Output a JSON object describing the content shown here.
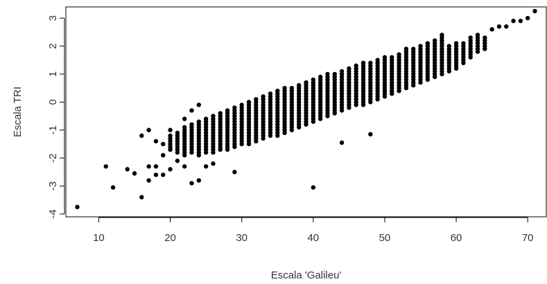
{
  "chart_data": {
    "type": "scatter",
    "title": "",
    "xlabel": "Escala 'Galileu'",
    "ylabel": "Escala TRI",
    "xlim": [
      5.4,
      72.6
    ],
    "ylim": [
      -4.1,
      3.4
    ],
    "xticks": [
      10,
      20,
      30,
      40,
      50,
      60,
      70
    ],
    "yticks": [
      -4,
      -3,
      -2,
      -1,
      0,
      1,
      2,
      3
    ],
    "grid": false,
    "legend": "none",
    "marker_color": "#000000",
    "points": {
      "x": [
        7,
        11,
        12,
        14,
        15,
        16,
        16,
        17,
        17,
        17,
        18,
        18,
        18,
        19,
        19,
        19,
        20,
        20,
        20,
        21,
        21,
        22,
        22,
        23,
        23,
        24,
        24,
        25,
        26,
        29,
        40,
        44,
        48
      ],
      "y": [
        -3.75,
        -2.3,
        -3.05,
        -2.4,
        -2.55,
        -1.2,
        -3.4,
        -1.0,
        -2.3,
        -2.8,
        -1.4,
        -2.3,
        -2.6,
        -1.5,
        -1.9,
        -2.6,
        -1.0,
        -1.7,
        -2.4,
        -2.1,
        -1.4,
        -2.3,
        -0.6,
        -2.9,
        -0.3,
        -2.8,
        -0.1,
        -2.3,
        -2.2,
        -2.5,
        -3.05,
        -1.45,
        -1.15
      ]
    },
    "column_bands": [
      {
        "x": 20,
        "ymin": -1.7,
        "ymax": -1.2
      },
      {
        "x": 21,
        "ymin": -1.8,
        "ymax": -1.1
      },
      {
        "x": 22,
        "ymin": -1.9,
        "ymax": -0.9
      },
      {
        "x": 23,
        "ymin": -1.8,
        "ymax": -0.8
      },
      {
        "x": 24,
        "ymin": -1.9,
        "ymax": -0.7
      },
      {
        "x": 25,
        "ymin": -1.8,
        "ymax": -0.6
      },
      {
        "x": 26,
        "ymin": -1.8,
        "ymax": -0.5
      },
      {
        "x": 27,
        "ymin": -1.7,
        "ymax": -0.4
      },
      {
        "x": 28,
        "ymin": -1.7,
        "ymax": -0.3
      },
      {
        "x": 29,
        "ymin": -1.6,
        "ymax": -0.2
      },
      {
        "x": 30,
        "ymin": -1.5,
        "ymax": -0.1
      },
      {
        "x": 31,
        "ymin": -1.5,
        "ymax": 0.0
      },
      {
        "x": 32,
        "ymin": -1.4,
        "ymax": 0.1
      },
      {
        "x": 33,
        "ymin": -1.3,
        "ymax": 0.2
      },
      {
        "x": 34,
        "ymin": -1.2,
        "ymax": 0.3
      },
      {
        "x": 35,
        "ymin": -1.2,
        "ymax": 0.4
      },
      {
        "x": 36,
        "ymin": -1.1,
        "ymax": 0.5
      },
      {
        "x": 37,
        "ymin": -1.0,
        "ymax": 0.5
      },
      {
        "x": 38,
        "ymin": -0.9,
        "ymax": 0.6
      },
      {
        "x": 39,
        "ymin": -0.8,
        "ymax": 0.7
      },
      {
        "x": 40,
        "ymin": -0.7,
        "ymax": 0.8
      },
      {
        "x": 41,
        "ymin": -0.6,
        "ymax": 0.9
      },
      {
        "x": 42,
        "ymin": -0.5,
        "ymax": 1.0
      },
      {
        "x": 43,
        "ymin": -0.4,
        "ymax": 1.0
      },
      {
        "x": 44,
        "ymin": -0.3,
        "ymax": 1.1
      },
      {
        "x": 45,
        "ymin": -0.2,
        "ymax": 1.2
      },
      {
        "x": 46,
        "ymin": -0.1,
        "ymax": 1.3
      },
      {
        "x": 47,
        "ymin": -0.1,
        "ymax": 1.4
      },
      {
        "x": 48,
        "ymin": 0.0,
        "ymax": 1.4
      },
      {
        "x": 49,
        "ymin": 0.1,
        "ymax": 1.5
      },
      {
        "x": 50,
        "ymin": 0.2,
        "ymax": 1.6
      },
      {
        "x": 51,
        "ymin": 0.3,
        "ymax": 1.6
      },
      {
        "x": 52,
        "ymin": 0.4,
        "ymax": 1.7
      },
      {
        "x": 53,
        "ymin": 0.5,
        "ymax": 1.9
      },
      {
        "x": 54,
        "ymin": 0.6,
        "ymax": 1.9
      },
      {
        "x": 55,
        "ymin": 0.7,
        "ymax": 2.0
      },
      {
        "x": 56,
        "ymin": 0.8,
        "ymax": 2.1
      },
      {
        "x": 57,
        "ymin": 0.9,
        "ymax": 2.2
      },
      {
        "x": 58,
        "ymin": 1.0,
        "ymax": 2.4
      },
      {
        "x": 59,
        "ymin": 1.1,
        "ymax": 2.0
      },
      {
        "x": 60,
        "ymin": 1.2,
        "ymax": 2.1
      },
      {
        "x": 61,
        "ymin": 1.4,
        "ymax": 2.1
      },
      {
        "x": 62,
        "ymin": 1.6,
        "ymax": 2.3
      },
      {
        "x": 63,
        "ymin": 1.8,
        "ymax": 2.4
      },
      {
        "x": 64,
        "ymin": 1.9,
        "ymax": 2.3
      }
    ],
    "upper_tail": {
      "x": [
        65,
        66,
        67,
        68,
        69,
        70,
        71
      ],
      "y": [
        2.6,
        2.7,
        2.7,
        2.9,
        2.9,
        3.0,
        3.25
      ]
    }
  }
}
